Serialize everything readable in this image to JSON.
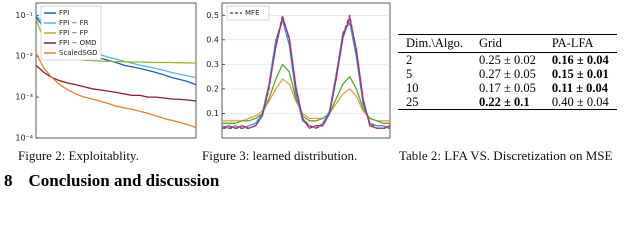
{
  "chart_data": [
    {
      "type": "line",
      "caption": "Figure 2: Exploitablity.",
      "yscale": "log",
      "x": [
        0,
        5,
        10,
        15,
        20,
        25,
        30,
        35,
        40,
        45,
        50,
        55,
        60,
        65,
        70,
        75,
        80,
        85,
        90,
        95,
        100
      ],
      "xlim": [
        0,
        100
      ],
      "ylim": [
        0.0001,
        0.2
      ],
      "yticks": [
        {
          "value": 0.1,
          "label": "10⁻¹"
        },
        {
          "value": 0.01,
          "label": "10⁻²"
        },
        {
          "value": 0.001,
          "label": "10⁻³"
        },
        {
          "value": 0.0001,
          "label": "10⁻⁴"
        }
      ],
      "legend": "upper left",
      "series": [
        {
          "name": "FPI",
          "color": "#1f5fbf",
          "values": [
            0.09,
            0.05,
            0.035,
            0.025,
            0.02,
            0.016,
            0.013,
            0.011,
            0.009,
            0.008,
            0.007,
            0.006,
            0.0055,
            0.005,
            0.0045,
            0.004,
            0.0035,
            0.003,
            0.0027,
            0.0024,
            0.002
          ]
        },
        {
          "name": "FPI − FR",
          "color": "#5ab4e6",
          "values": [
            0.1,
            0.06,
            0.04,
            0.03,
            0.024,
            0.019,
            0.016,
            0.013,
            0.011,
            0.0095,
            0.0085,
            0.0075,
            0.0068,
            0.006,
            0.0055,
            0.005,
            0.0045,
            0.004,
            0.0036,
            0.0033,
            0.003
          ]
        },
        {
          "name": "FPI − FP",
          "color": "#9ab82e",
          "values": [
            0.08,
            0.025,
            0.013,
            0.01,
            0.009,
            0.0085,
            0.008,
            0.0078,
            0.0076,
            0.0075,
            0.0074,
            0.0073,
            0.0072,
            0.0072,
            0.0071,
            0.007,
            0.007,
            0.007,
            0.0069,
            0.0069,
            0.0068
          ]
        },
        {
          "name": "FPI − OMD",
          "color": "#8b1a2b",
          "values": [
            0.006,
            0.004,
            0.003,
            0.0025,
            0.0022,
            0.002,
            0.0018,
            0.0016,
            0.0015,
            0.0014,
            0.0013,
            0.0012,
            0.0011,
            0.0011,
            0.001,
            0.001,
            0.00095,
            0.0009,
            0.00088,
            0.00085,
            0.0008
          ]
        },
        {
          "name": "ScaledSGD",
          "color": "#e8822a",
          "values": [
            0.012,
            0.005,
            0.003,
            0.002,
            0.0015,
            0.0012,
            0.001,
            0.0009,
            0.0008,
            0.0007,
            0.0006,
            0.00055,
            0.0005,
            0.00045,
            0.0004,
            0.00035,
            0.0003,
            0.00027,
            0.00024,
            0.00021,
            0.00018
          ]
        }
      ]
    },
    {
      "type": "line",
      "caption": "Figure 3: learned distribution.",
      "x": [
        0,
        2,
        4,
        6,
        8,
        10,
        12,
        14,
        16,
        18,
        20,
        22,
        24,
        26,
        28,
        30,
        32,
        34,
        36,
        38,
        40,
        42,
        44,
        46,
        48,
        50
      ],
      "xlim": [
        0,
        50
      ],
      "ylim": [
        0,
        0.55
      ],
      "yticks": [
        0.1,
        0.2,
        0.3,
        0.4,
        0.5
      ],
      "grid": true,
      "legend": "upper left",
      "series": [
        {
          "color": "#e8a23a",
          "values": [
            0.07,
            0.07,
            0.07,
            0.07,
            0.08,
            0.09,
            0.11,
            0.15,
            0.2,
            0.24,
            0.22,
            0.15,
            0.1,
            0.08,
            0.08,
            0.08,
            0.1,
            0.14,
            0.18,
            0.2,
            0.17,
            0.11,
            0.08,
            0.07,
            0.07,
            0.07
          ]
        },
        {
          "color": "#5aa832",
          "values": [
            0.06,
            0.06,
            0.06,
            0.07,
            0.07,
            0.08,
            0.1,
            0.16,
            0.24,
            0.3,
            0.27,
            0.16,
            0.09,
            0.07,
            0.07,
            0.08,
            0.1,
            0.16,
            0.22,
            0.25,
            0.2,
            0.12,
            0.08,
            0.07,
            0.06,
            0.06
          ]
        },
        {
          "color": "#4a90d9",
          "values": [
            0.05,
            0.04,
            0.05,
            0.04,
            0.05,
            0.06,
            0.1,
            0.22,
            0.4,
            0.48,
            0.38,
            0.18,
            0.07,
            0.05,
            0.04,
            0.06,
            0.11,
            0.26,
            0.43,
            0.47,
            0.33,
            0.14,
            0.06,
            0.05,
            0.05,
            0.04
          ]
        },
        {
          "color": "#c2293a",
          "values": [
            0.04,
            0.05,
            0.04,
            0.05,
            0.04,
            0.05,
            0.09,
            0.21,
            0.37,
            0.49,
            0.41,
            0.21,
            0.08,
            0.04,
            0.05,
            0.05,
            0.1,
            0.24,
            0.41,
            0.49,
            0.36,
            0.16,
            0.05,
            0.04,
            0.04,
            0.05
          ]
        },
        {
          "name": "MFE",
          "color": "#7b3fa0",
          "linestyle": "dashed",
          "values": [
            0.04,
            0.04,
            0.04,
            0.04,
            0.04,
            0.05,
            0.09,
            0.2,
            0.38,
            0.5,
            0.4,
            0.2,
            0.08,
            0.05,
            0.04,
            0.05,
            0.1,
            0.25,
            0.42,
            0.5,
            0.35,
            0.15,
            0.06,
            0.04,
            0.04,
            0.04
          ]
        }
      ]
    }
  ],
  "table": {
    "caption": "Table 2: LFA VS. Discretization on MSE",
    "header": [
      "Dim.\\Algo.",
      "Grid",
      "PA-LFA"
    ],
    "rows": [
      [
        "2",
        "0.25 ± 0.02",
        "0.16 ± 0.04"
      ],
      [
        "5",
        "0.27 ± 0.05",
        "0.15 ± 0.01"
      ],
      [
        "10",
        "0.17 ± 0.05",
        "0.11 ± 0.04"
      ],
      [
        "25",
        "0.22 ± 0.1",
        "0.40 ± 0.04"
      ]
    ]
  },
  "section": {
    "number": "8",
    "title": "Conclusion and discussion"
  }
}
